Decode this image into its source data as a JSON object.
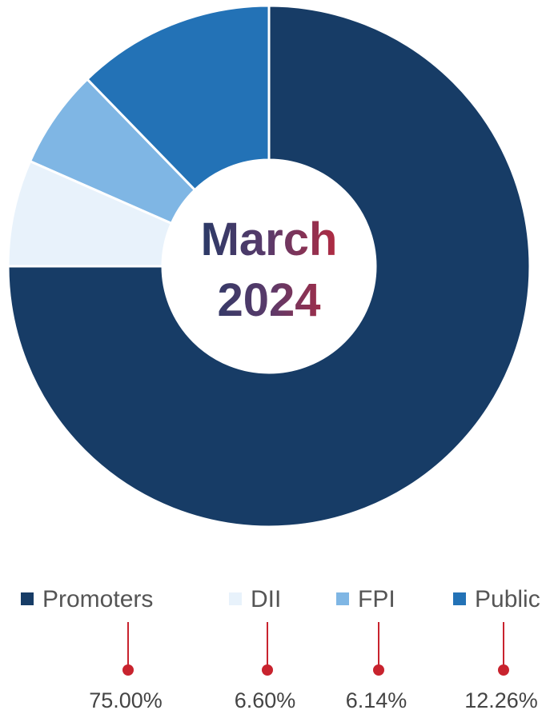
{
  "chart_data": {
    "type": "pie",
    "donut": true,
    "title": "March 2024",
    "categories": [
      "Promoters",
      "DII",
      "FPI",
      "Public"
    ],
    "values": [
      75.0,
      6.6,
      6.14,
      12.26
    ],
    "value_labels": [
      "75.00%",
      "6.60%",
      "6.14%",
      "12.26%"
    ],
    "colors": [
      "#173c66",
      "#e8f2fb",
      "#7fb6e4",
      "#2372b6"
    ]
  }
}
